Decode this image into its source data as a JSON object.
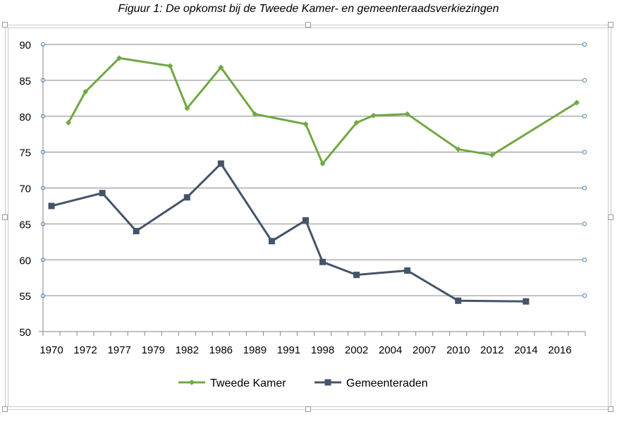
{
  "chart_data": {
    "type": "line",
    "title": "Figuur 1: De opkomst bij de Tweede Kamer- en gemeenteraadsverkiezingen",
    "xlabel": "",
    "ylabel": "",
    "ylim": [
      50,
      90
    ],
    "y_ticks": [
      "50",
      "55",
      "60",
      "65",
      "70",
      "75",
      "80",
      "85",
      "90"
    ],
    "x_category_count": 32,
    "x_labels": [
      "1970",
      "1972",
      "1977",
      "1979",
      "1982",
      "1986",
      "1989",
      "1991",
      "1998",
      "2002",
      "2004",
      "2007",
      "2010",
      "2012",
      "2014",
      "2016"
    ],
    "grid": true,
    "legend_position": "bottom",
    "series": [
      {
        "name": "Tweede Kamer",
        "color": "#70a845",
        "marker": "diamond",
        "x": [
          1,
          2,
          4,
          7,
          8,
          10,
          12,
          15,
          16,
          18,
          19,
          21,
          24,
          26,
          31
        ],
        "values": [
          79.1,
          83.4,
          88.1,
          87.0,
          81.1,
          86.8,
          80.3,
          78.9,
          73.4,
          79.1,
          80.1,
          80.3,
          75.4,
          74.6,
          81.9
        ]
      },
      {
        "name": "Gemeenteraden",
        "color": "#44546a",
        "marker": "square",
        "x": [
          0,
          3,
          5,
          8,
          10,
          13,
          15,
          16,
          18,
          21,
          24,
          28
        ],
        "values": [
          67.5,
          69.3,
          64.0,
          68.7,
          73.4,
          62.6,
          65.5,
          59.7,
          57.9,
          58.5,
          54.3,
          54.2
        ]
      }
    ]
  }
}
